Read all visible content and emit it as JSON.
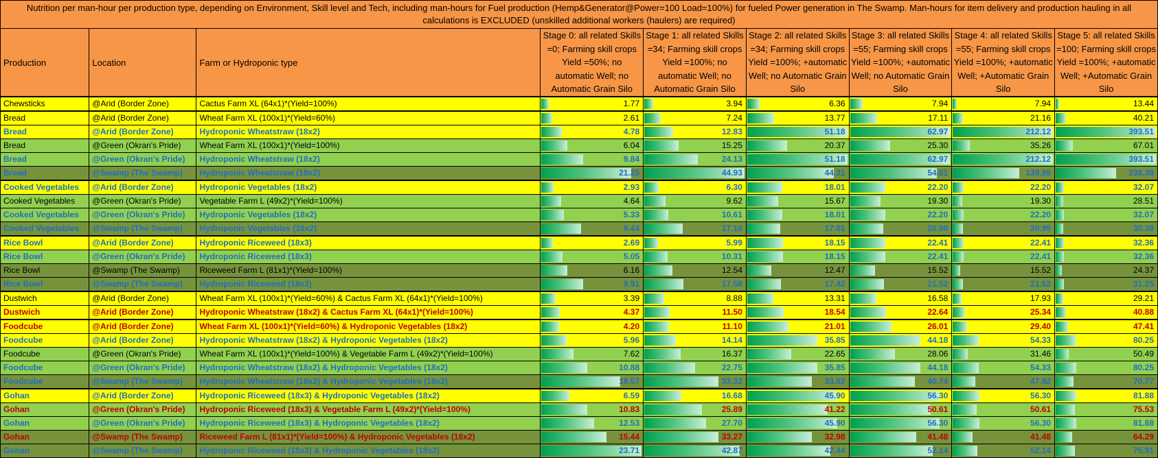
{
  "title": "Nutrition per man-hour per production type, depending on Environment, Skill level and Tech, including man-hours for Fuel production (Hemp&Generator@Power=100 Load=100%) for fueled Power generation in The Swamp. Man-hours for item delivery and production hauling in all calculations is EXCLUDED (unskilled additional workers (haulers) are required)",
  "headers": {
    "production": "Production",
    "location": "Location",
    "type": "Farm or Hydroponic type",
    "stages": [
      "Stage 0: all related Skills =0; Farming skill crops Yield =50%; no automatic Well; no Automatic Grain Silo",
      "Stage 1: all related Skills =34; Farming skill crops Yield =100%; no automatic Well; no Automatic Grain Silo",
      "Stage 2: all related Skills =34; Farming skill crops Yield =100%; +automatic Well; no Automatic Grain Silo",
      "Stage 3: all related Skills =55; Farming skill crops Yield =100%; +automatic Well; no Automatic Grain Silo",
      "Stage 4: all related Skills =55; Farming skill crops Yield =100%; +automatic Well; +Automatic Grain Silo",
      "Stage 5: all related Skills =100; Farming skill crops Yield =100%; +automatic Well; +Automatic Grain Silo"
    ]
  },
  "bar_max": [
    23.71,
    44.93,
    51.18,
    62.97,
    212.12,
    393.51
  ],
  "rows": [
    {
      "production": "Chewsticks",
      "location": "@Arid (Border Zone)",
      "type": "Cactus Farm XL (64x1)*(Yield=100%)",
      "values": [
        "1.77",
        "3.94",
        "6.36",
        "7.94",
        "7.94",
        "13.44"
      ],
      "bg": "yellow",
      "text": "black",
      "group_start": true
    },
    {
      "production": "Bread",
      "location": "@Arid (Border Zone)",
      "type": "Wheat Farm XL (100x1)*(Yield=60%)",
      "values": [
        "2.61",
        "7.24",
        "13.77",
        "17.11",
        "21.16",
        "40.21"
      ],
      "bg": "yellow",
      "text": "black",
      "group_start": true
    },
    {
      "production": "Bread",
      "location": "@Arid (Border Zone)",
      "type": "Hydroponic Wheatstraw (18x2)",
      "values": [
        "4.78",
        "12.83",
        "51.18",
        "62.97",
        "212.12",
        "393.51"
      ],
      "bg": "yellow",
      "text": "blue"
    },
    {
      "production": "Bread",
      "location": "@Green (Okran's Pride)",
      "type": "Wheat Farm XL (100x1)*(Yield=100%)",
      "values": [
        "6.04",
        "15.25",
        "20.37",
        "25.30",
        "35.26",
        "67.01"
      ],
      "bg": "green",
      "text": "black"
    },
    {
      "production": "Bread",
      "location": "@Green (Okran's Pride)",
      "type": "Hydroponic Wheatstraw (18x2)",
      "values": [
        "9.84",
        "24.13",
        "51.18",
        "62.97",
        "212.12",
        "393.51"
      ],
      "bg": "green",
      "text": "blue"
    },
    {
      "production": "Bread",
      "location": "@Swamp (The Swamp)",
      "type": "Hydroponic Wheatstraw (18x2)",
      "values": [
        "21.25",
        "44.93",
        "44.31",
        "54.61",
        "139.95",
        "238.38"
      ],
      "bg": "olive",
      "text": "blue"
    },
    {
      "production": "Cooked Vegetables",
      "location": "@Arid (Border Zone)",
      "type": "Hydroponic Vegetables (18x2)",
      "values": [
        "2.93",
        "6.30",
        "18.01",
        "22.20",
        "22.20",
        "32.07"
      ],
      "bg": "yellow",
      "text": "blue",
      "group_start": true
    },
    {
      "production": "Cooked Vegetables",
      "location": "@Green (Okran's Pride)",
      "type": "Vegetable Farm L (49x2)*(Yield=100%)",
      "values": [
        "4.64",
        "9.62",
        "15.67",
        "19.30",
        "19.30",
        "28.51"
      ],
      "bg": "green",
      "text": "black"
    },
    {
      "production": "Cooked Vegetables",
      "location": "@Green (Okran's Pride)",
      "type": "Hydroponic Vegetables (18x2)",
      "values": [
        "5.33",
        "10.61",
        "18.01",
        "22.20",
        "22.20",
        "32.07"
      ],
      "bg": "green",
      "text": "blue"
    },
    {
      "production": "Cooked Vegetables",
      "location": "@Swamp (The Swamp)",
      "type": "Hydroponic Vegetables (18x2)",
      "values": [
        "9.44",
        "17.10",
        "17.01",
        "20.99",
        "20.99",
        "30.36"
      ],
      "bg": "olive",
      "text": "blue"
    },
    {
      "production": "Rice Bowl",
      "location": "@Arid (Border Zone)",
      "type": "Hydroponic Riceweed (18x3)",
      "values": [
        "2.69",
        "5.99",
        "18.15",
        "22.41",
        "22.41",
        "32.36"
      ],
      "bg": "yellow",
      "text": "blue",
      "group_start": true
    },
    {
      "production": "Rice Bowl",
      "location": "@Green (Okran's Pride)",
      "type": "Hydroponic Riceweed (18x3)",
      "values": [
        "5.05",
        "10.31",
        "18.15",
        "22.41",
        "22.41",
        "32.36"
      ],
      "bg": "green",
      "text": "blue"
    },
    {
      "production": "Rice Bowl",
      "location": "@Swamp (The Swamp)",
      "type": "Riceweed Farm L (81x1)*(Yield=100%)",
      "values": [
        "6.16",
        "12.54",
        "12.47",
        "15.52",
        "15.52",
        "24.37"
      ],
      "bg": "olive",
      "text": "black"
    },
    {
      "production": "Rice Bowl",
      "location": "@Swamp (The Swamp)",
      "type": "Hydroponic Riceweed (18x3)",
      "values": [
        "9.91",
        "17.58",
        "17.42",
        "21.52",
        "21.52",
        "31.25"
      ],
      "bg": "olive",
      "text": "blue"
    },
    {
      "production": "Dustwich",
      "location": "@Arid (Border Zone)",
      "type": "Wheat Farm XL (100x1)*(Yield=60%) & Cactus Farm XL (64x1)*(Yield=100%)",
      "values": [
        "3.39",
        "8.88",
        "13.31",
        "16.58",
        "17.93",
        "29.21"
      ],
      "bg": "yellow",
      "text": "black",
      "group_start": true
    },
    {
      "production": "Dustwich",
      "location": "@Arid (Border Zone)",
      "type": "Hydroponic Wheatstraw (18x2) & Cactus Farm XL (64x1)*(Yield=100%)",
      "values": [
        "4.37",
        "11.50",
        "18.54",
        "22.64",
        "25.34",
        "40.88"
      ],
      "bg": "yellow",
      "text": "red"
    },
    {
      "production": "Foodcube",
      "location": "@Arid (Border Zone)",
      "type": "Wheat Farm XL (100x1)*(Yield=60%) & Hydroponic Vegetables (18x2)",
      "values": [
        "4.20",
        "11.10",
        "21.01",
        "26.01",
        "29.40",
        "47.41"
      ],
      "bg": "yellow",
      "text": "red",
      "group_start": true
    },
    {
      "production": "Foodcube",
      "location": "@Arid (Border Zone)",
      "type": "Hydroponic Wheatstraw (18x2) & Hydroponic Vegetables (18x2)",
      "values": [
        "5.96",
        "14.14",
        "35.85",
        "44.18",
        "54.33",
        "80.25"
      ],
      "bg": "yellow",
      "text": "blue"
    },
    {
      "production": "Foodcube",
      "location": "@Green (Okran's Pride)",
      "type": "Wheat Farm XL (100x1)*(Yield=100%) & Vegetable Farm L (49x2)*(Yield=100%)",
      "values": [
        "7.62",
        "16.37",
        "22.65",
        "28.06",
        "31.46",
        "50.49"
      ],
      "bg": "green",
      "text": "black"
    },
    {
      "production": "Foodcube",
      "location": "@Green (Okran's Pride)",
      "type": "Hydroponic Wheatstraw (18x2) & Hydroponic Vegetables (18x2)",
      "values": [
        "10.88",
        "22.75",
        "35.85",
        "44.18",
        "54.33",
        "80.25"
      ],
      "bg": "green",
      "text": "blue"
    },
    {
      "production": "Foodcube",
      "location": "@Swamp (The Swamp)",
      "type": "Hydroponic Wheatstraw (18x2) & Hydroponic Vegetables (18x2)",
      "values": [
        "18.57",
        "33.32",
        "33.02",
        "40.74",
        "47.92",
        "70.77"
      ],
      "bg": "olive",
      "text": "blue"
    },
    {
      "production": "Gohan",
      "location": "@Arid (Border Zone)",
      "type": "Hydroponic Riceweed (18x3) & Hydroponic Vegetables (18x2)",
      "values": [
        "6.59",
        "16.68",
        "45.90",
        "56.30",
        "56.30",
        "81.88"
      ],
      "bg": "yellow",
      "text": "blue",
      "group_start": true
    },
    {
      "production": "Gohan",
      "location": "@Green (Okran's Pride)",
      "type": "Hydroponic Riceweed (18x3) & Vegetable Farm L (49x2)*(Yield=100%)",
      "values": [
        "10.83",
        "25.89",
        "41.22",
        "50.61",
        "50.61",
        "75.53"
      ],
      "bg": "green",
      "text": "red"
    },
    {
      "production": "Gohan",
      "location": "@Green (Okran's Pride)",
      "type": "Hydroponic Riceweed (18x3) & Hydroponic Vegetables (18x2)",
      "values": [
        "12.53",
        "27.70",
        "45.90",
        "56.30",
        "56.30",
        "81.88"
      ],
      "bg": "green",
      "text": "blue"
    },
    {
      "production": "Gohan",
      "location": "@Swamp (The Swamp)",
      "type": "Riceweed Farm L (81x1)*(Yield=100%) & Hydroponic Vegetables (18x2)",
      "values": [
        "15.44",
        "33.27",
        "32.98",
        "41.48",
        "41.48",
        "64.29"
      ],
      "bg": "olive",
      "text": "red"
    },
    {
      "production": "Gohan",
      "location": "@Swamp (The Swamp)",
      "type": "Hydroponic Riceweed (18x3) & Hydroponic Vegetables (18x2)",
      "values": [
        "23.71",
        "42.87",
        "42.44",
        "52.14",
        "52.14",
        "75.91"
      ],
      "bg": "olive",
      "text": "blue"
    }
  ]
}
